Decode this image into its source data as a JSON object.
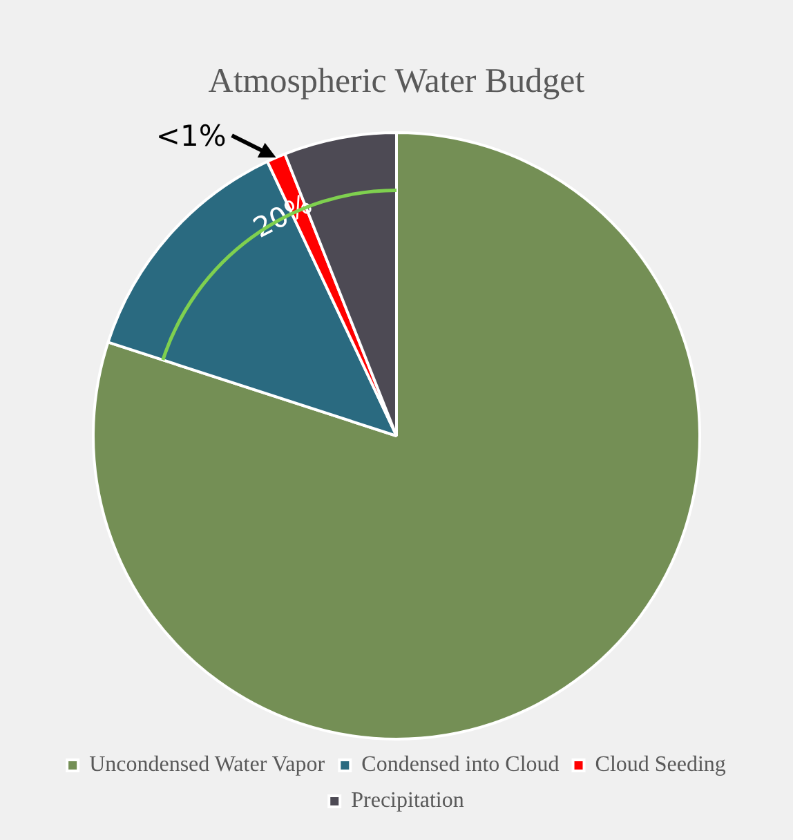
{
  "chart_data": {
    "type": "pie",
    "title": "Atmospheric Water Budget",
    "categories": [
      "Uncondensed Water Vapor",
      "Condensed into Cloud",
      "Cloud Seeding",
      "Precipitation"
    ],
    "values": [
      80,
      13,
      1,
      6
    ],
    "colors": [
      "#748f55",
      "#2a6a80",
      "#ff0000",
      "#4d4a54"
    ],
    "legend": "bottom",
    "annotations": [
      "<1%",
      "20%"
    ]
  }
}
